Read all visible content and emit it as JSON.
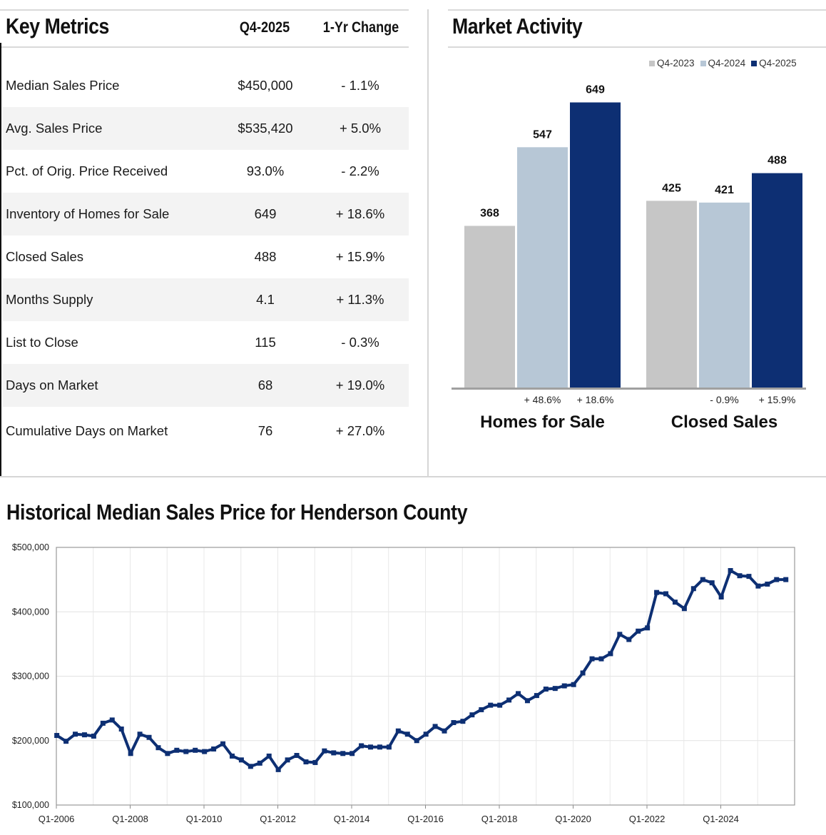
{
  "key_metrics": {
    "title": "Key Metrics",
    "col_period": "Q4-2025",
    "col_change": "1-Yr Change",
    "rows": [
      {
        "label": "Median Sales Price",
        "value": "$450,000",
        "change": "- 1.1%"
      },
      {
        "label": "Avg. Sales Price",
        "value": "$535,420",
        "change": "+ 5.0%"
      },
      {
        "label": "Pct. of Orig. Price Received",
        "value": "93.0%",
        "change": "- 2.2%"
      },
      {
        "label": "Inventory of Homes for Sale",
        "value": "649",
        "change": "+ 18.6%"
      },
      {
        "label": "Closed Sales",
        "value": "488",
        "change": "+ 15.9%"
      },
      {
        "label": "Months Supply",
        "value": "4.1",
        "change": "+ 11.3%"
      },
      {
        "label": "List to Close",
        "value": "115",
        "change": "- 0.3%"
      },
      {
        "label": "Days on Market",
        "value": "68",
        "change": "+ 19.0%"
      },
      {
        "label": "Cumulative Days on Market",
        "value": "76",
        "change": "+ 27.0%"
      }
    ]
  },
  "market_activity": {
    "title": "Market Activity"
  },
  "historical": {
    "title": "Historical Median Sales Price for Henderson County"
  },
  "chart_data": [
    {
      "type": "bar",
      "title": "Market Activity",
      "categories": [
        "Homes for Sale",
        "Closed Sales"
      ],
      "series": [
        {
          "name": "Q4-2023",
          "color": "#c6c6c6",
          "values": [
            368,
            425
          ]
        },
        {
          "name": "Q4-2024",
          "color": "#b7c7d6",
          "values": [
            547,
            421
          ]
        },
        {
          "name": "Q4-2025",
          "color": "#0d2f73",
          "values": [
            649,
            488
          ]
        }
      ],
      "change_labels": [
        [
          "+ 48.6%",
          "+ 18.6%"
        ],
        [
          "- 0.9%",
          "+ 15.9%"
        ]
      ],
      "ylim": [
        0,
        700
      ],
      "legend": "top-right"
    },
    {
      "type": "line",
      "title": "Historical Median Sales Price for Henderson County",
      "xlabel": "",
      "ylabel": "",
      "ylim": [
        100000,
        500000
      ],
      "yticks": [
        100000,
        200000,
        300000,
        400000,
        500000
      ],
      "ytick_labels": [
        "$100,000",
        "$200,000",
        "$300,000",
        "$400,000",
        "$500,000"
      ],
      "xtick_labels": [
        "Q1-2006",
        "Q1-2008",
        "Q1-2010",
        "Q1-2012",
        "Q1-2014",
        "Q1-2016",
        "Q1-2018",
        "Q1-2020",
        "Q1-2022",
        "Q1-2024"
      ],
      "start_quarter": "Q1-2006",
      "line_color": "#0d2f73",
      "grid": true,
      "values": [
        208000,
        199000,
        210000,
        209000,
        207000,
        227000,
        232000,
        218000,
        180000,
        210000,
        205000,
        189000,
        180000,
        185000,
        183000,
        185000,
        183000,
        187000,
        195000,
        176000,
        170000,
        160000,
        165000,
        176000,
        155000,
        170000,
        177000,
        167000,
        166000,
        184000,
        181000,
        180000,
        180000,
        192000,
        190000,
        190000,
        190000,
        215000,
        210000,
        200000,
        210000,
        222000,
        215000,
        228000,
        230000,
        240000,
        248000,
        255000,
        255000,
        263000,
        273000,
        262000,
        270000,
        280000,
        281000,
        285000,
        287000,
        305000,
        327000,
        327000,
        335000,
        365000,
        357000,
        370000,
        375000,
        430000,
        428000,
        415000,
        405000,
        436000,
        450000,
        445000,
        423000,
        464000,
        456000,
        455000,
        440000,
        443000,
        450000,
        450000
      ]
    }
  ]
}
